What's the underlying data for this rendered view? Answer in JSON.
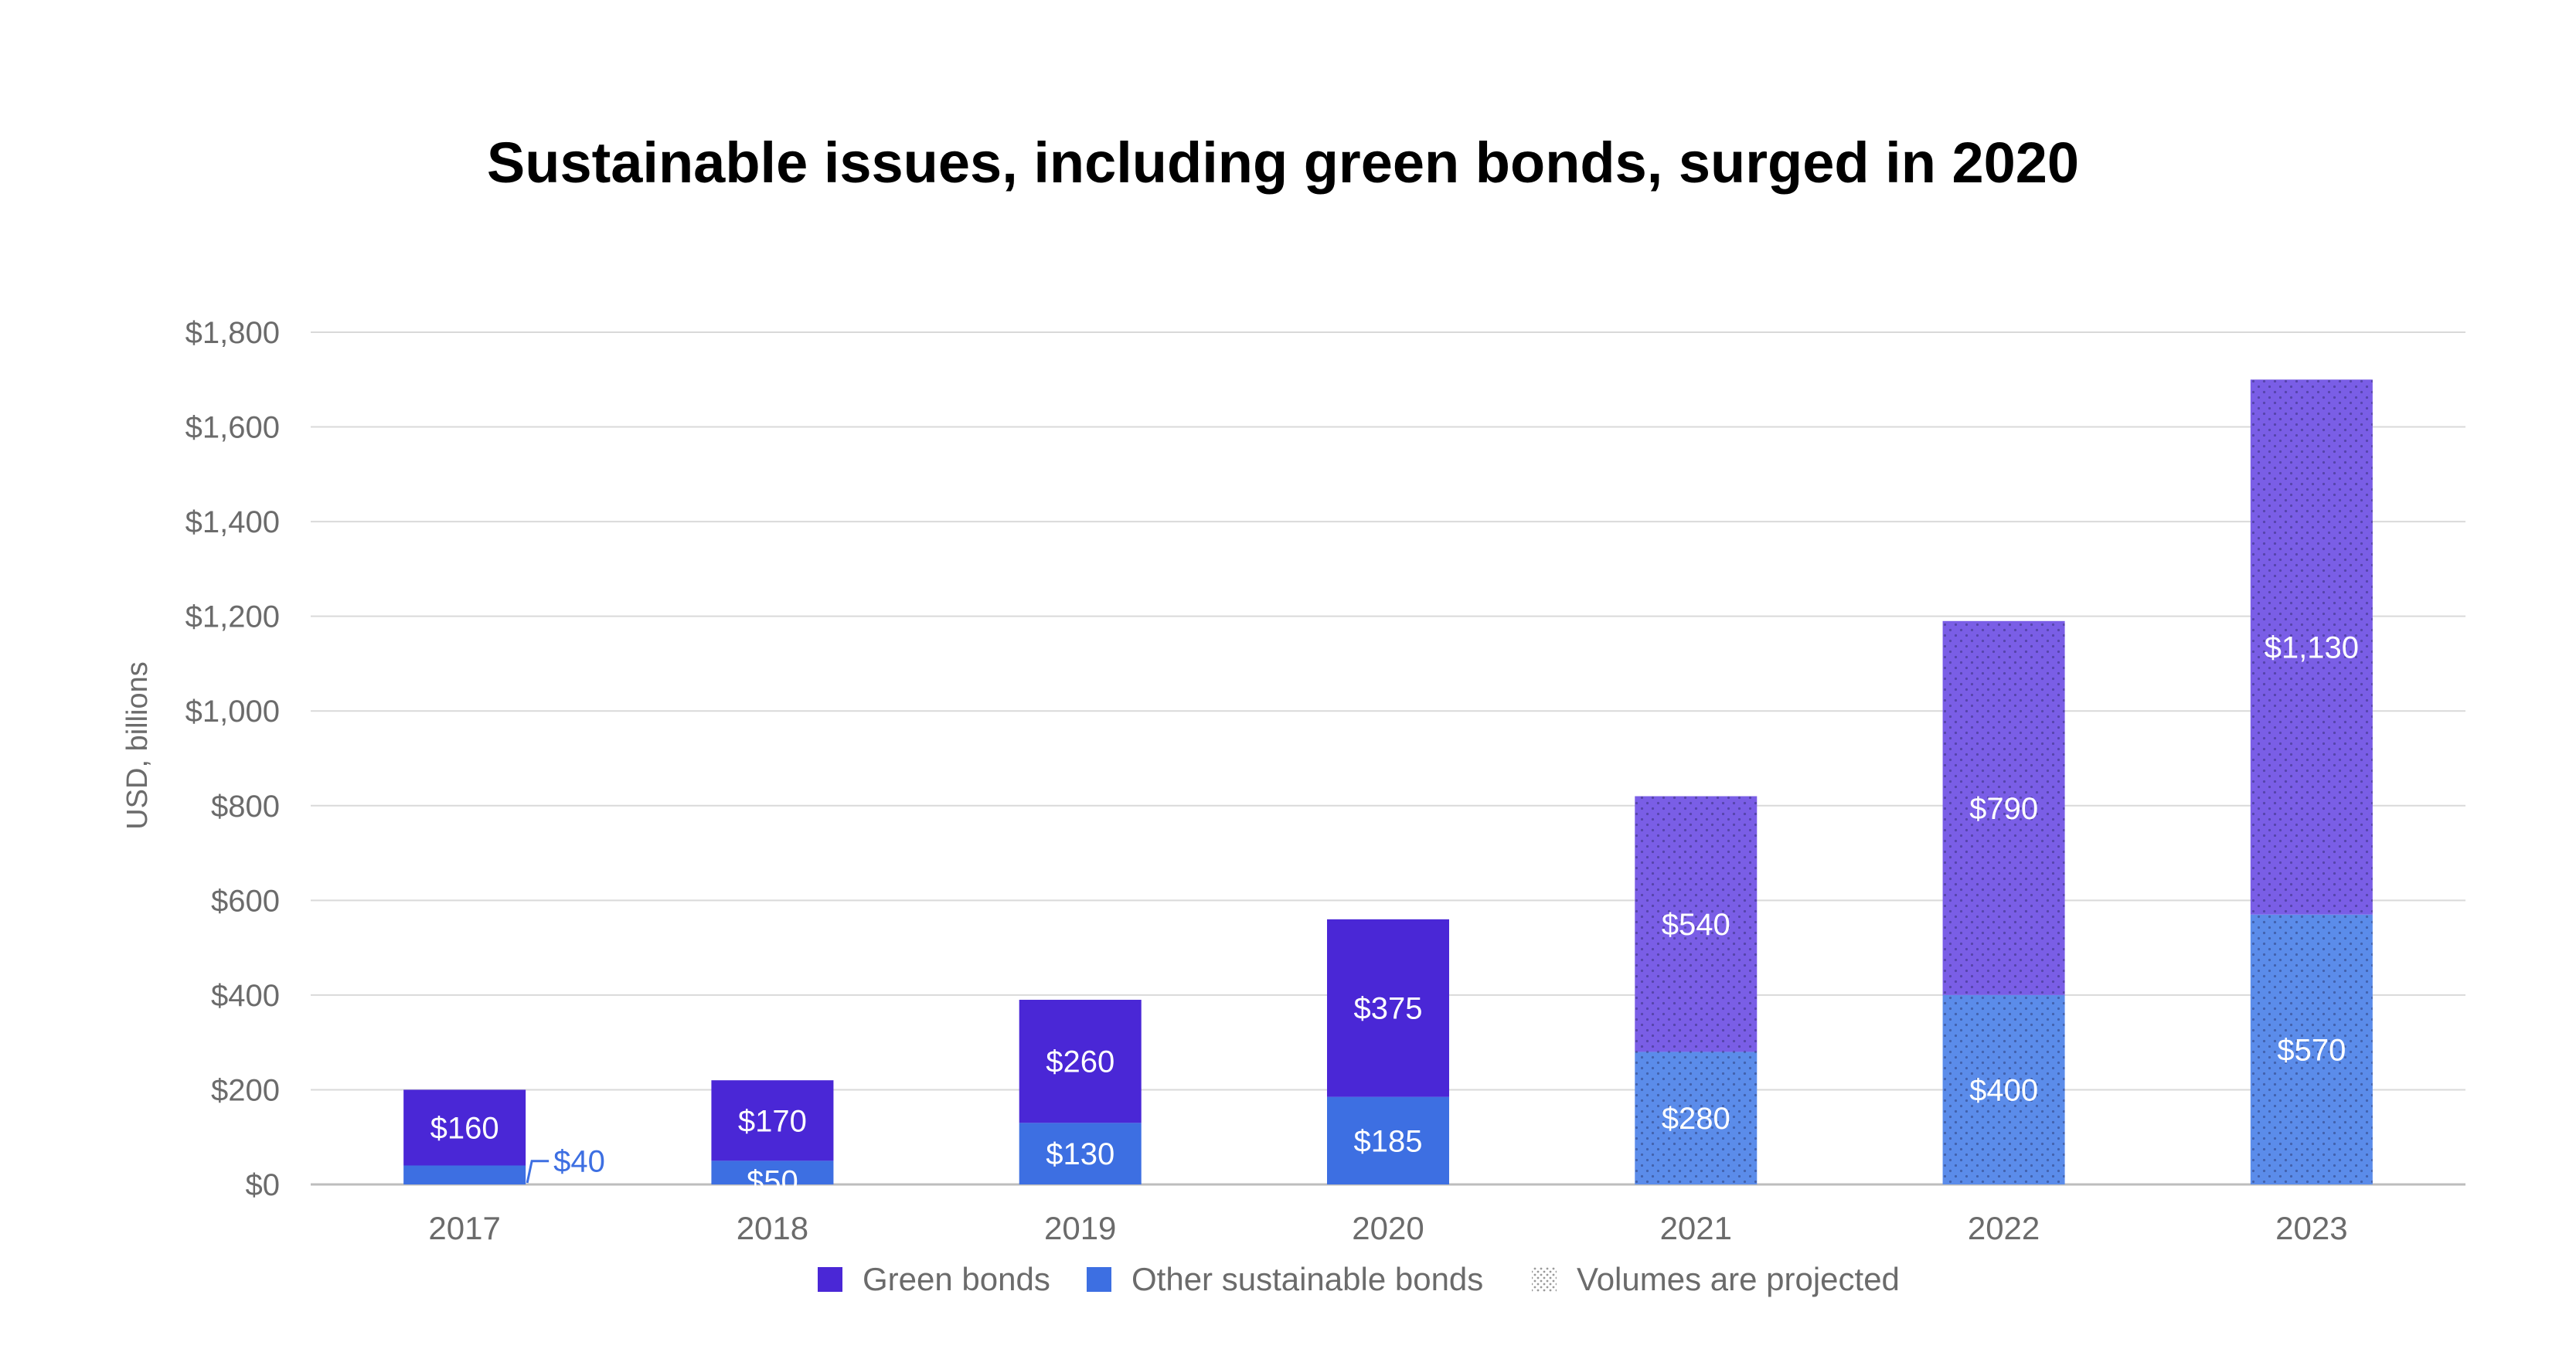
{
  "chart_data": {
    "type": "bar",
    "stacked": true,
    "title": "Sustainable issues, including green bonds, surged in 2020",
    "ylabel": "USD, billions",
    "xlabel": "",
    "categories": [
      "2017",
      "2018",
      "2019",
      "2020",
      "2021",
      "2022",
      "2023"
    ],
    "ylim": [
      0,
      1800
    ],
    "yticks": [
      0,
      200,
      400,
      600,
      800,
      1000,
      1200,
      1400,
      1600,
      1800
    ],
    "ytick_labels": [
      "$0",
      "$200",
      "$400",
      "$600",
      "$800",
      "$1,000",
      "$1,200",
      "$1,400",
      "$1,600",
      "$1,800"
    ],
    "grid": true,
    "projected_from": "2021",
    "series": [
      {
        "name": "Other sustainable bonds",
        "color": "#3d6fe2",
        "projected_color": "#5b8cea",
        "values": [
          40,
          50,
          130,
          185,
          280,
          400,
          570
        ],
        "labels": [
          "$40",
          "$50",
          "$130",
          "$185",
          "$280",
          "$400",
          "$570"
        ]
      },
      {
        "name": "Green bonds",
        "color": "#4a27d6",
        "projected_color": "#7a5ee6",
        "values": [
          160,
          170,
          260,
          375,
          540,
          790,
          1130
        ],
        "labels": [
          "$160",
          "$170",
          "$260",
          "$375",
          "$540",
          "$790",
          "$1,130"
        ]
      }
    ],
    "legend": {
      "position": "bottom",
      "items": [
        "Green bonds",
        "Other sustainable bonds",
        "Volumes are projected"
      ]
    },
    "colors": {
      "text": "#000000",
      "axis_text": "#6b6b6b",
      "grid": "#d9d9d9",
      "callout": "#3d6fe2"
    }
  }
}
